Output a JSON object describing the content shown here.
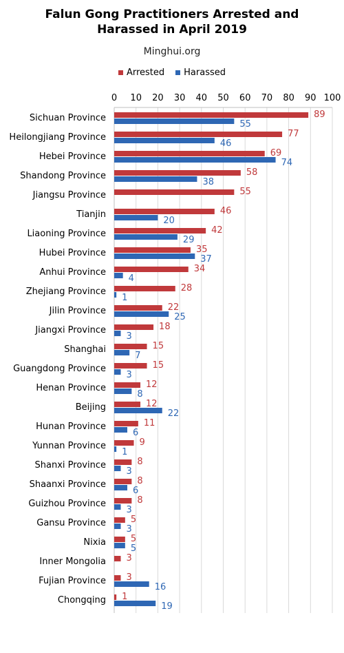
{
  "chart_data": {
    "type": "bar",
    "orientation": "horizontal",
    "title": "Falun Gong Practitioners Arrested and Harassed in April 2019",
    "title_lines": [
      "Falun Gong Practitioners Arrested and",
      "Harassed in April 2019"
    ],
    "subtitle": "Minghui.org",
    "xlim": [
      0,
      100
    ],
    "xticks": [
      0,
      10,
      20,
      30,
      40,
      50,
      60,
      70,
      80,
      90,
      100
    ],
    "xaxis_position": "top",
    "grid": true,
    "legend_position": "top",
    "colors": {
      "Arrested": "#c0393b",
      "Harassed": "#2e67b4"
    },
    "categories": [
      "Sichuan Province",
      "Heilongjiang Province",
      "Hebei Province",
      "Shandong Province",
      "Jiangsu Province",
      "Tianjin",
      "Liaoning Province",
      "Hubei Province",
      "Anhui Province",
      "Zhejiang Province",
      "Jilin Province",
      "Jiangxi Province",
      "Shanghai",
      "Guangdong Province",
      "Henan Province",
      "Beijing",
      "Hunan Province",
      "Yunnan Province",
      "Shanxi Province",
      "Shaanxi Province",
      "Guizhou Province",
      "Gansu Province",
      "Nixia",
      "Inner Mongolia",
      "Fujian Province",
      "Chongqing"
    ],
    "series": [
      {
        "name": "Arrested",
        "values": [
          89,
          77,
          69,
          58,
          55,
          46,
          42,
          35,
          34,
          28,
          22,
          18,
          15,
          15,
          12,
          12,
          11,
          9,
          8,
          8,
          8,
          5,
          5,
          3,
          3,
          1
        ]
      },
      {
        "name": "Harassed",
        "values": [
          55,
          46,
          74,
          38,
          null,
          20,
          29,
          37,
          4,
          1,
          25,
          3,
          7,
          3,
          8,
          22,
          6,
          1,
          3,
          6,
          3,
          3,
          5,
          null,
          16,
          19
        ]
      }
    ]
  }
}
